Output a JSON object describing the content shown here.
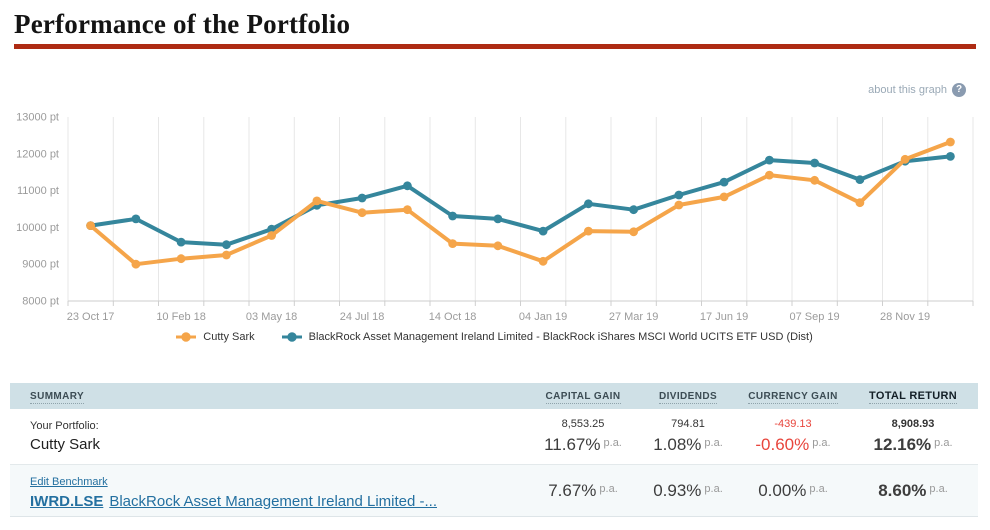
{
  "page": {
    "title": "Performance of the Portfolio"
  },
  "theme": {
    "accent_rule": "#AE2B13",
    "link_color": "#2470A0",
    "negative_color": "#E8453C",
    "table_header_bg": "#CFE0E6",
    "axis_text_color": "#9B9B9B",
    "grid_color": "#E7E7E7"
  },
  "chart": {
    "about_link": "about this graph",
    "help_icon": "?"
  },
  "chart_data": {
    "type": "line",
    "title": "",
    "xlabel": "",
    "ylabel": "",
    "y_unit": "pt",
    "ylim": [
      8000,
      13000
    ],
    "y_ticks": [
      8000,
      9000,
      10000,
      11000,
      12000,
      13000
    ],
    "x_tick_labels": [
      "23 Oct 17",
      "10 Feb 18",
      "03 May 18",
      "24 Jul 18",
      "14 Oct 18",
      "04 Jan 19",
      "27 Mar 19",
      "17 Jun 19",
      "07 Sep 19",
      "28 Nov 19"
    ],
    "points_per_tick": 2,
    "grid": "vertical-only",
    "legend_position": "bottom",
    "series": [
      {
        "name": "Cutty Sark",
        "color": "#F5A54A",
        "values": [
          10050,
          9000,
          9150,
          9250,
          9780,
          10720,
          10400,
          10480,
          9560,
          9500,
          9080,
          9900,
          9880,
          10610,
          10830,
          11420,
          11280,
          10670,
          11850,
          12320
        ]
      },
      {
        "name": "BlackRock Asset Management Ireland Limited - BlackRock iShares MSCI World UCITS ETF USD (Dist)",
        "color": "#35869C",
        "values": [
          10050,
          10230,
          9600,
          9530,
          9950,
          10600,
          10800,
          11130,
          10310,
          10230,
          9900,
          10640,
          10480,
          10880,
          11230,
          11830,
          11750,
          11300,
          11800,
          11930
        ]
      }
    ]
  },
  "summary_table": {
    "pa_suffix": "p.a.",
    "headers": {
      "summary": "SUMMARY",
      "capital_gain": "CAPITAL GAIN",
      "dividends": "DIVIDENDS",
      "currency_gain": "CURRENCY GAIN",
      "total_return": "TOTAL RETURN"
    },
    "portfolio_row": {
      "label_prefix": "Your Portfolio:",
      "name": "Cutty Sark",
      "capital_gain": {
        "amount": "8,553.25",
        "percent": "11.67%"
      },
      "dividends": {
        "amount": "794.81",
        "percent": "1.08%"
      },
      "currency_gain": {
        "amount": "-439.13",
        "percent": "-0.60%"
      },
      "total_return": {
        "amount": "8,908.93",
        "percent": "12.16%"
      }
    },
    "benchmark_row": {
      "edit_link": "Edit Benchmark",
      "ticker": "IWRD.LSE",
      "name": "BlackRock Asset Management Ireland Limited -...",
      "capital_gain": {
        "percent": "7.67%"
      },
      "dividends": {
        "percent": "0.93%"
      },
      "currency_gain": {
        "percent": "0.00%"
      },
      "total_return": {
        "percent": "8.60%"
      }
    }
  }
}
